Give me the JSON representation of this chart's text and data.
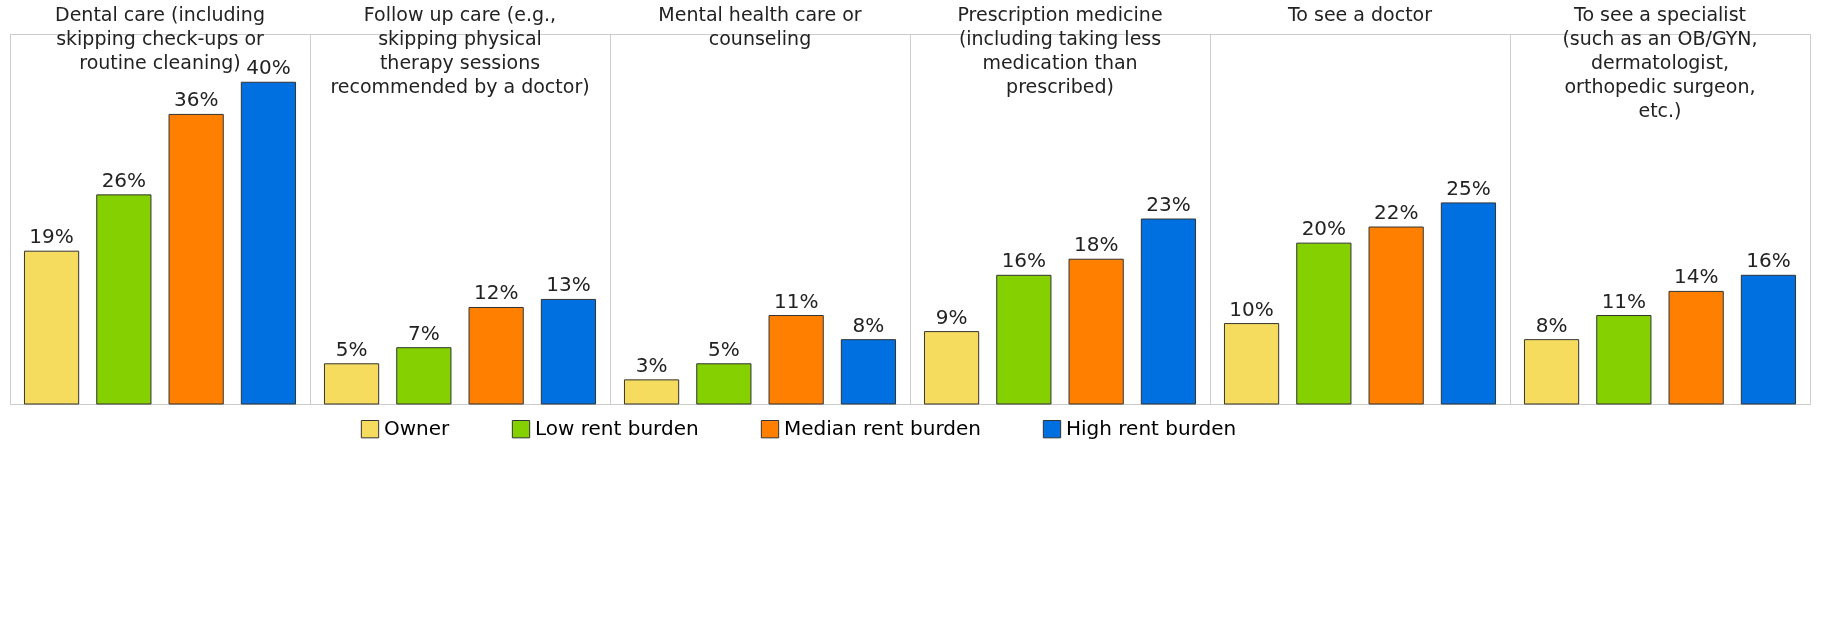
{
  "chart_data": {
    "type": "bar",
    "categories": [
      "Dental care (including skipping check-ups or routine cleaning)",
      "Follow up care (e.g., skipping physical therapy sessions recommended by a doctor)",
      "Mental health care or counseling",
      "Prescription medicine (including taking less medication than prescribed)",
      "To see a doctor",
      "To see a specialist (such as an OB/GYN, dermatologist, orthopedic surgeon, etc.)"
    ],
    "series": [
      {
        "name": "Owner",
        "color": "#f5dc5f",
        "values": [
          19,
          5,
          3,
          9,
          10,
          8
        ],
        "value_labels": [
          "19%",
          "5%",
          "3%",
          "9%",
          "10%",
          "8%"
        ]
      },
      {
        "name": "Low rent burden",
        "color": "#84d000",
        "values": [
          26,
          7,
          5,
          16,
          20,
          11
        ],
        "value_labels": [
          "26%",
          "7%",
          "5%",
          "16%",
          "20%",
          "11%"
        ]
      },
      {
        "name": "Median rent burden",
        "color": "#ff8000",
        "values": [
          36,
          12,
          11,
          18,
          22,
          14
        ],
        "value_labels": [
          "36%",
          "12%",
          "11%",
          "18%",
          "22%",
          "14%"
        ]
      },
      {
        "name": "High rent burden",
        "color": "#0070e0",
        "values": [
          40,
          13,
          8,
          23,
          25,
          16
        ],
        "value_labels": [
          "40%",
          "13%",
          "8%",
          "23%",
          "25%",
          "16%"
        ]
      }
    ],
    "legend": "bottom",
    "grid": false
  }
}
